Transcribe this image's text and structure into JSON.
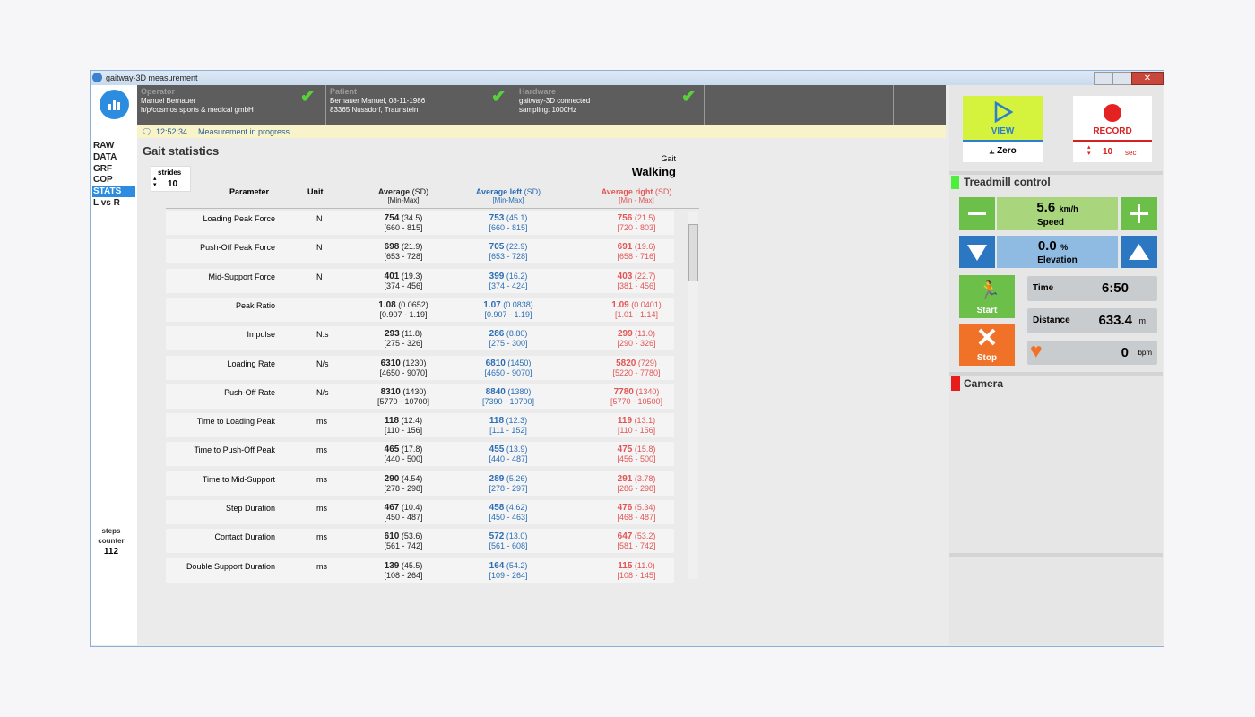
{
  "window": {
    "title": "gaitway-3D  measurement"
  },
  "header": {
    "operator": {
      "label": "Operator",
      "lines": [
        "Manuel Bernauer",
        "h/p/cosmos sports & medical gmbH"
      ]
    },
    "patient": {
      "label": "Patient",
      "lines": [
        "Bernauer Manuel, 08-11-1986",
        "83365 Nussdorf, Traunstein"
      ]
    },
    "hardware": {
      "label": "Hardware",
      "lines": [
        "gaitway-3D connected",
        "sampling: 1000Hz"
      ]
    }
  },
  "status": {
    "time": "12:52:34",
    "message": "Measurement in progress"
  },
  "nav": {
    "items": [
      {
        "label": "RAW"
      },
      {
        "label": "DATA"
      },
      {
        "label": "GRF"
      },
      {
        "label": "COP"
      },
      {
        "label": "STATS",
        "selected": true
      },
      {
        "label": "L vs R"
      }
    ]
  },
  "steps_counter": {
    "label": "steps counter",
    "value": 112
  },
  "stats": {
    "title": "Gait statistics",
    "strides": {
      "label": "strides",
      "value": 10
    },
    "gait": {
      "label": "Gait",
      "value": "Walking"
    },
    "columns": {
      "parameter": "Parameter",
      "unit": "Unit",
      "avg": {
        "name": "Average",
        "sd": "(SD)",
        "sub": "[Min-Max]"
      },
      "left": {
        "name": "Average left",
        "sd": "(SD)",
        "sub": "[Min-Max]"
      },
      "right": {
        "name": "Average right",
        "sd": "(SD)",
        "sub": "[Min  - Max]"
      }
    },
    "rows": [
      {
        "parameter": "Loading Peak Force",
        "unit": "N",
        "avg": [
          "754",
          "(34.5)",
          "[660 - 815]"
        ],
        "left": [
          "753",
          "(45.1)",
          "[660 - 815]"
        ],
        "right": [
          "756",
          "(21.5)",
          "[720 - 803]"
        ]
      },
      {
        "parameter": "Push-Off Peak Force",
        "unit": "N",
        "avg": [
          "698",
          "(21.9)",
          "[653 - 728]"
        ],
        "left": [
          "705",
          "(22.9)",
          "[653 - 728]"
        ],
        "right": [
          "691",
          "(19.6)",
          "[658 - 716]"
        ]
      },
      {
        "parameter": "Mid-Support Force",
        "unit": "N",
        "avg": [
          "401",
          "(19.3)",
          "[374 - 456]"
        ],
        "left": [
          "399",
          "(16.2)",
          "[374 - 424]"
        ],
        "right": [
          "403",
          "(22.7)",
          "[381 - 456]"
        ]
      },
      {
        "parameter": "Peak Ratio",
        "avg": [
          "1.08",
          "(0.0652)",
          "[0.907 - 1.19]"
        ],
        "left": [
          "1.07",
          "(0.0838)",
          "[0.907 - 1.19]"
        ],
        "right": [
          "1.09",
          "(0.0401)",
          "[1.01 - 1.14]"
        ]
      },
      {
        "parameter": "Impulse",
        "unit": "N.s",
        "avg": [
          "293",
          "(11.8)",
          "[275 - 326]"
        ],
        "left": [
          "286",
          "(8.80)",
          "[275 - 300]"
        ],
        "right": [
          "299",
          "(11.0)",
          "[290 - 326]"
        ]
      },
      {
        "parameter": "Loading Rate",
        "unit": "N/s",
        "avg": [
          "6310",
          "(1230)",
          "[4650 - 9070]"
        ],
        "left": [
          "6810",
          "(1450)",
          "[4650 - 9070]"
        ],
        "right": [
          "5820",
          "(729)",
          "[5220 - 7780]"
        ]
      },
      {
        "parameter": "Push-Off Rate",
        "unit": "N/s",
        "avg": [
          "8310",
          "(1430)",
          "[5770 - 10700]"
        ],
        "left": [
          "8840",
          "(1380)",
          "[7390 - 10700]"
        ],
        "right": [
          "7780",
          "(1340)",
          "[5770 - 10500]"
        ]
      },
      {
        "parameter": "Time to Loading Peak",
        "unit": "ms",
        "avg": [
          "118",
          "(12.4)",
          "[110 - 156]"
        ],
        "left": [
          "118",
          "(12.3)",
          "[111 - 152]"
        ],
        "right": [
          "119",
          "(13.1)",
          "[110 - 156]"
        ]
      },
      {
        "parameter": "Time to Push-Off Peak",
        "unit": "ms",
        "avg": [
          "465",
          "(17.8)",
          "[440 - 500]"
        ],
        "left": [
          "455",
          "(13.9)",
          "[440 - 487]"
        ],
        "right": [
          "475",
          "(15.8)",
          "[456 - 500]"
        ]
      },
      {
        "parameter": "Time to Mid-Support",
        "unit": "ms",
        "avg": [
          "290",
          "(4.54)",
          "[278 - 298]"
        ],
        "left": [
          "289",
          "(5.26)",
          "[278 - 297]"
        ],
        "right": [
          "291",
          "(3.78)",
          "[286 - 298]"
        ]
      },
      {
        "parameter": "Step Duration",
        "unit": "ms",
        "avg": [
          "467",
          "(10.4)",
          "[450 - 487]"
        ],
        "left": [
          "458",
          "(4.62)",
          "[450 - 463]"
        ],
        "right": [
          "476",
          "(5.34)",
          "[468 - 487]"
        ]
      },
      {
        "parameter": "Contact Duration",
        "unit": "ms",
        "avg": [
          "610",
          "(53.6)",
          "[561 - 742]"
        ],
        "left": [
          "572",
          "(13.0)",
          "[561 - 608]"
        ],
        "right": [
          "647",
          "(53.2)",
          "[581 - 742]"
        ]
      },
      {
        "parameter": "Double Support Duration",
        "unit": "ms",
        "avg": [
          "139",
          "(45.5)",
          "[108 - 264]"
        ],
        "left": [
          "164",
          "(54.2)",
          "[109 - 264]"
        ],
        "right": [
          "115",
          "(11.0)",
          "[108 - 145]"
        ]
      }
    ]
  },
  "controls": {
    "view": "VIEW",
    "zero": "Zero",
    "record": "RECORD",
    "record_time": {
      "value": "10",
      "unit": "sec"
    },
    "treadmill": {
      "title": "Treadmill control",
      "speed": {
        "value": "5.6",
        "unit": "km/h",
        "label": "Speed"
      },
      "elevation": {
        "value": "0.0",
        "unit": "%",
        "label": "Elevation"
      },
      "start": "Start",
      "stop": "Stop",
      "time": {
        "label": "Time",
        "value": "6:50"
      },
      "distance": {
        "label": "Distance",
        "value": "633.4",
        "unit": "m"
      },
      "heart": {
        "value": "0",
        "unit": "bpm"
      }
    },
    "camera": "Camera"
  }
}
